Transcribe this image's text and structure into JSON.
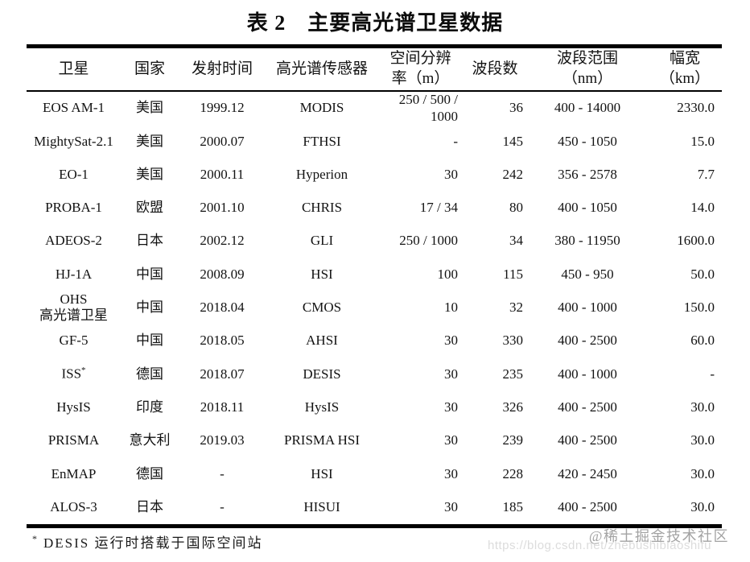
{
  "title": "表 2　主要高光谱卫星数据",
  "table": {
    "columns": [
      {
        "label": "卫星"
      },
      {
        "label": "国家"
      },
      {
        "label": "发射时间"
      },
      {
        "label": "高光谱传感器"
      },
      {
        "label": "空间分辨\n率（m）"
      },
      {
        "label": "波段数"
      },
      {
        "label": "波段范围\n（nm）"
      },
      {
        "label": "幅宽\n（km）"
      }
    ],
    "rows": [
      [
        "EOS AM-1",
        "美国",
        "1999.12",
        "MODIS",
        "250 / 500 /\n1000",
        "36",
        "400 - 14000",
        "2330.0"
      ],
      [
        "MightySat-2.1",
        "美国",
        "2000.07",
        "FTHSI",
        "-",
        "145",
        "450 - 1050",
        "15.0"
      ],
      [
        "EO-1",
        "美国",
        "2000.11",
        "Hyperion",
        "30",
        "242",
        "356 - 2578",
        "7.7"
      ],
      [
        "PROBA-1",
        "欧盟",
        "2001.10",
        "CHRIS",
        "17 / 34",
        "80",
        "400 - 1050",
        "14.0"
      ],
      [
        "ADEOS-2",
        "日本",
        "2002.12",
        "GLI",
        "250 / 1000",
        "34",
        "380 - 11950",
        "1600.0"
      ],
      [
        "HJ-1A",
        "中国",
        "2008.09",
        "HSI",
        "100",
        "115",
        "450 - 950",
        "50.0"
      ],
      [
        "OHS\n高光谱卫星",
        "中国",
        "2018.04",
        "CMOS",
        "10",
        "32",
        "400 - 1000",
        "150.0"
      ],
      [
        "GF-5",
        "中国",
        "2018.05",
        "AHSI",
        "30",
        "330",
        "400 - 2500",
        "60.0"
      ],
      [
        "ISS^*",
        "德国",
        "2018.07",
        "DESIS",
        "30",
        "235",
        "400 - 1000",
        "-"
      ],
      [
        "HysIS",
        "印度",
        "2018.11",
        "HysIS",
        "30",
        "326",
        "400 - 2500",
        "30.0"
      ],
      [
        "PRISMA",
        "意大利",
        "2019.03",
        "PRISMA HSI",
        "30",
        "239",
        "400 - 2500",
        "30.0"
      ],
      [
        "EnMAP",
        "德国",
        "-",
        "HSI",
        "30",
        "228",
        "420 - 2450",
        "30.0"
      ],
      [
        "ALOS-3",
        "日本",
        "-",
        "HISUI",
        "30",
        "185",
        "400 - 2500",
        "30.0"
      ]
    ]
  },
  "footnote": {
    "marker": "*",
    "text": "DESIS 运行时搭载于国际空间站"
  },
  "watermark": {
    "community": "@稀土掘金技术社区",
    "url": "https://blog.csdn.net/zhebushibiaoshifu"
  },
  "colors": {
    "text": "#121212",
    "rule": "#000000",
    "watermark_gray": "#a3a3a3",
    "watermark_light": "#dcdcdc"
  }
}
